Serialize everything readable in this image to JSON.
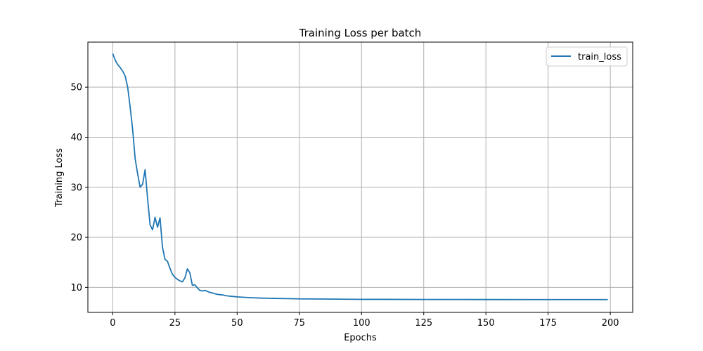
{
  "chart_data": {
    "type": "line",
    "title": "Training Loss per batch",
    "xlabel": "Epochs",
    "ylabel": "Training Loss",
    "xlim": [
      -10,
      209
    ],
    "ylim": [
      5,
      59
    ],
    "xticks": [
      0,
      25,
      50,
      75,
      100,
      125,
      150,
      175,
      200
    ],
    "yticks": [
      10,
      20,
      30,
      40,
      50
    ],
    "grid": true,
    "legend": "top-right",
    "series": [
      {
        "name": "train_loss",
        "color": "#1f77b4",
        "x": [
          0,
          1,
          2,
          3,
          4,
          5,
          6,
          7,
          8,
          9,
          10,
          11,
          12,
          13,
          14,
          15,
          16,
          17,
          18,
          19,
          20,
          21,
          22,
          23,
          24,
          25,
          26,
          27,
          28,
          29,
          30,
          31,
          32,
          33,
          34,
          35,
          36,
          37,
          38,
          39,
          40,
          42,
          44,
          46,
          48,
          50,
          55,
          60,
          65,
          70,
          75,
          80,
          90,
          100,
          110,
          125,
          150,
          175,
          199
        ],
        "y": [
          56.7,
          55.4,
          54.5,
          53.9,
          53.2,
          52.2,
          50.0,
          46.0,
          41.5,
          35.7,
          32.7,
          30.0,
          30.6,
          33.5,
          27.8,
          22.5,
          21.5,
          24.0,
          22.0,
          23.9,
          18.0,
          15.6,
          15.2,
          13.8,
          12.6,
          12.0,
          11.6,
          11.3,
          11.1,
          11.9,
          13.7,
          12.9,
          10.4,
          10.5,
          9.9,
          9.4,
          9.3,
          9.4,
          9.2,
          9.0,
          8.9,
          8.6,
          8.5,
          8.3,
          8.2,
          8.1,
          7.95,
          7.85,
          7.8,
          7.75,
          7.7,
          7.68,
          7.65,
          7.6,
          7.6,
          7.58,
          7.57,
          7.56,
          7.56
        ]
      }
    ]
  }
}
